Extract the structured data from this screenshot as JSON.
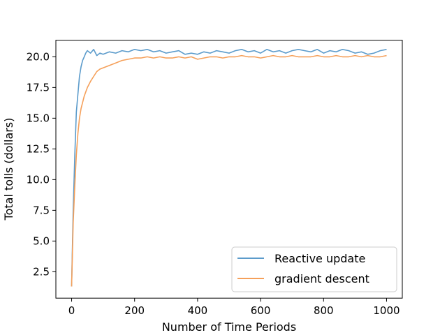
{
  "chart_data": {
    "type": "line",
    "title": "",
    "xlabel": "Number of Time Periods",
    "ylabel": "Total tolls (dollars)",
    "xlim": [
      -50,
      1050
    ],
    "ylim": [
      0.35,
      21.35
    ],
    "xticks": [
      0,
      200,
      400,
      600,
      800,
      1000
    ],
    "xtick_labels": [
      "0",
      "200",
      "400",
      "600",
      "800",
      "1000"
    ],
    "yticks": [
      2.5,
      5.0,
      7.5,
      10.0,
      12.5,
      15.0,
      17.5,
      20.0
    ],
    "ytick_labels": [
      "2.5",
      "5.0",
      "7.5",
      "10.0",
      "12.5",
      "15.0",
      "17.5",
      "20.0"
    ],
    "grid": false,
    "legend_position": "lower-right",
    "series": [
      {
        "name": "Reactive update",
        "color": "#5b9bcb",
        "x": [
          0,
          5,
          10,
          15,
          20,
          25,
          30,
          35,
          40,
          45,
          50,
          60,
          70,
          80,
          90,
          100,
          120,
          140,
          160,
          180,
          200,
          220,
          240,
          260,
          280,
          300,
          320,
          340,
          360,
          380,
          400,
          420,
          440,
          460,
          480,
          500,
          520,
          540,
          560,
          580,
          600,
          620,
          640,
          660,
          680,
          700,
          720,
          740,
          760,
          780,
          800,
          820,
          840,
          860,
          880,
          900,
          920,
          940,
          960,
          980,
          1000
        ],
        "y": [
          1.3,
          7.5,
          12.0,
          15.5,
          17.0,
          18.4,
          19.2,
          19.7,
          20.0,
          20.3,
          20.5,
          20.3,
          20.6,
          20.1,
          20.3,
          20.2,
          20.4,
          20.3,
          20.5,
          20.4,
          20.6,
          20.5,
          20.6,
          20.4,
          20.5,
          20.3,
          20.4,
          20.5,
          20.2,
          20.3,
          20.2,
          20.4,
          20.3,
          20.5,
          20.4,
          20.3,
          20.5,
          20.6,
          20.4,
          20.5,
          20.3,
          20.6,
          20.4,
          20.5,
          20.3,
          20.5,
          20.6,
          20.5,
          20.4,
          20.6,
          20.3,
          20.5,
          20.4,
          20.6,
          20.5,
          20.3,
          20.4,
          20.2,
          20.3,
          20.5,
          20.6
        ]
      },
      {
        "name": "gradient descent",
        "color": "#f5a05a",
        "x": [
          0,
          5,
          10,
          15,
          20,
          25,
          30,
          40,
          50,
          60,
          70,
          80,
          90,
          100,
          120,
          140,
          160,
          180,
          200,
          220,
          240,
          260,
          280,
          300,
          320,
          340,
          360,
          380,
          400,
          420,
          440,
          460,
          480,
          500,
          520,
          540,
          560,
          580,
          600,
          620,
          640,
          660,
          680,
          700,
          720,
          740,
          760,
          780,
          800,
          820,
          840,
          860,
          880,
          900,
          920,
          940,
          960,
          980,
          1000
        ],
        "y": [
          1.3,
          6.5,
          9.5,
          12.0,
          13.8,
          15.0,
          15.8,
          16.8,
          17.5,
          18.0,
          18.4,
          18.8,
          19.0,
          19.1,
          19.3,
          19.5,
          19.7,
          19.8,
          19.9,
          19.9,
          20.0,
          19.9,
          20.0,
          19.9,
          19.9,
          20.0,
          19.9,
          20.0,
          19.8,
          19.9,
          20.0,
          20.0,
          19.9,
          20.0,
          20.0,
          20.1,
          20.0,
          20.0,
          19.9,
          20.0,
          20.1,
          20.0,
          20.0,
          20.1,
          20.0,
          20.0,
          20.0,
          20.1,
          20.0,
          20.0,
          20.1,
          20.0,
          20.0,
          20.1,
          20.0,
          20.1,
          20.0,
          20.0,
          20.1
        ]
      }
    ]
  }
}
